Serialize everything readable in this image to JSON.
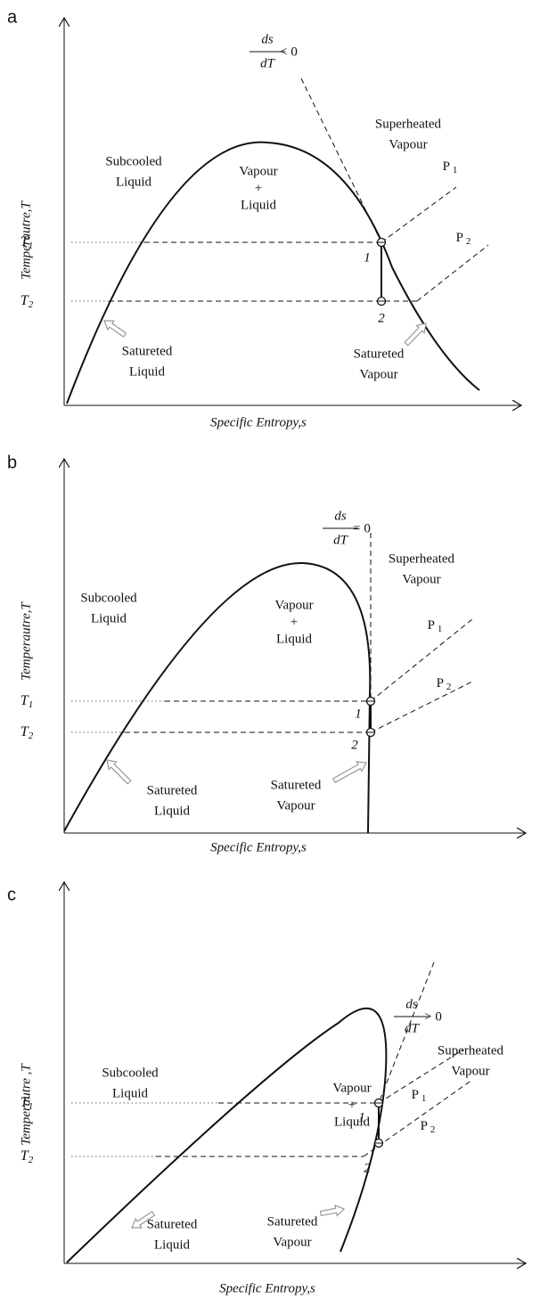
{
  "panels": [
    {
      "label": "a",
      "y_axis_label": "Temperautre,T",
      "x_axis_label": "Specific Entropy,s",
      "slope": {
        "numerator": "ds",
        "denominator": "dT",
        "relation": "< 0"
      },
      "regions": {
        "subcooled": [
          "Subcooled",
          "Liquid"
        ],
        "superheated": [
          "Superheated",
          "Vapour"
        ],
        "mixture": [
          "Vapour",
          "+",
          "Liquid"
        ],
        "saturated_liquid": [
          "Satureted",
          "Liquid"
        ],
        "saturated_vapour": [
          "Satureted",
          "Vapour"
        ]
      },
      "temperatures": [
        {
          "symbol": "T",
          "sub": "1"
        },
        {
          "symbol": "T",
          "sub": "2"
        }
      ],
      "pressures": [
        {
          "symbol": "P",
          "sub": "1"
        },
        {
          "symbol": "P",
          "sub": "2"
        }
      ],
      "points": [
        "1",
        "2"
      ]
    },
    {
      "label": "b",
      "y_axis_label": "Temperautre,T",
      "x_axis_label": "Specific Entropy,s",
      "slope": {
        "numerator": "ds",
        "denominator": "dT",
        "relation": "= 0"
      },
      "regions": {
        "subcooled": [
          "Subcooled",
          "Liquid"
        ],
        "superheated": [
          "Superheated",
          "Vapour"
        ],
        "mixture": [
          "Vapour",
          "+",
          "Liquid"
        ],
        "saturated_liquid": [
          "Satureted",
          "Liquid"
        ],
        "saturated_vapour": [
          "Satureted",
          "Vapour"
        ]
      },
      "temperatures": [
        {
          "symbol": "T",
          "sub": "1"
        },
        {
          "symbol": "T",
          "sub": "2"
        }
      ],
      "pressures": [
        {
          "symbol": "P",
          "sub": "1"
        },
        {
          "symbol": "P",
          "sub": "2"
        }
      ],
      "points": [
        "1",
        "2"
      ]
    },
    {
      "label": "c",
      "y_axis_label": "Temperautre ,T",
      "x_axis_label": "Specific Entropy,s",
      "slope": {
        "numerator": "ds",
        "denominator": "dT",
        "relation": "> 0"
      },
      "regions": {
        "subcooled": [
          "Subcooled",
          "Liquid"
        ],
        "superheated": [
          "Superheated",
          "Vapour"
        ],
        "mixture": [
          "Vapour",
          "+",
          "Liquid"
        ],
        "saturated_liquid": [
          "Satureted",
          "Liquid"
        ],
        "saturated_vapour": [
          "Satureted",
          "Vapour"
        ]
      },
      "temperatures": [
        {
          "symbol": "T",
          "sub": "1"
        },
        {
          "symbol": "T",
          "sub": "2"
        }
      ],
      "pressures": [
        {
          "symbol": "P",
          "sub": "1"
        },
        {
          "symbol": "P",
          "sub": "2"
        }
      ],
      "points": [
        "1",
        "2"
      ]
    }
  ]
}
